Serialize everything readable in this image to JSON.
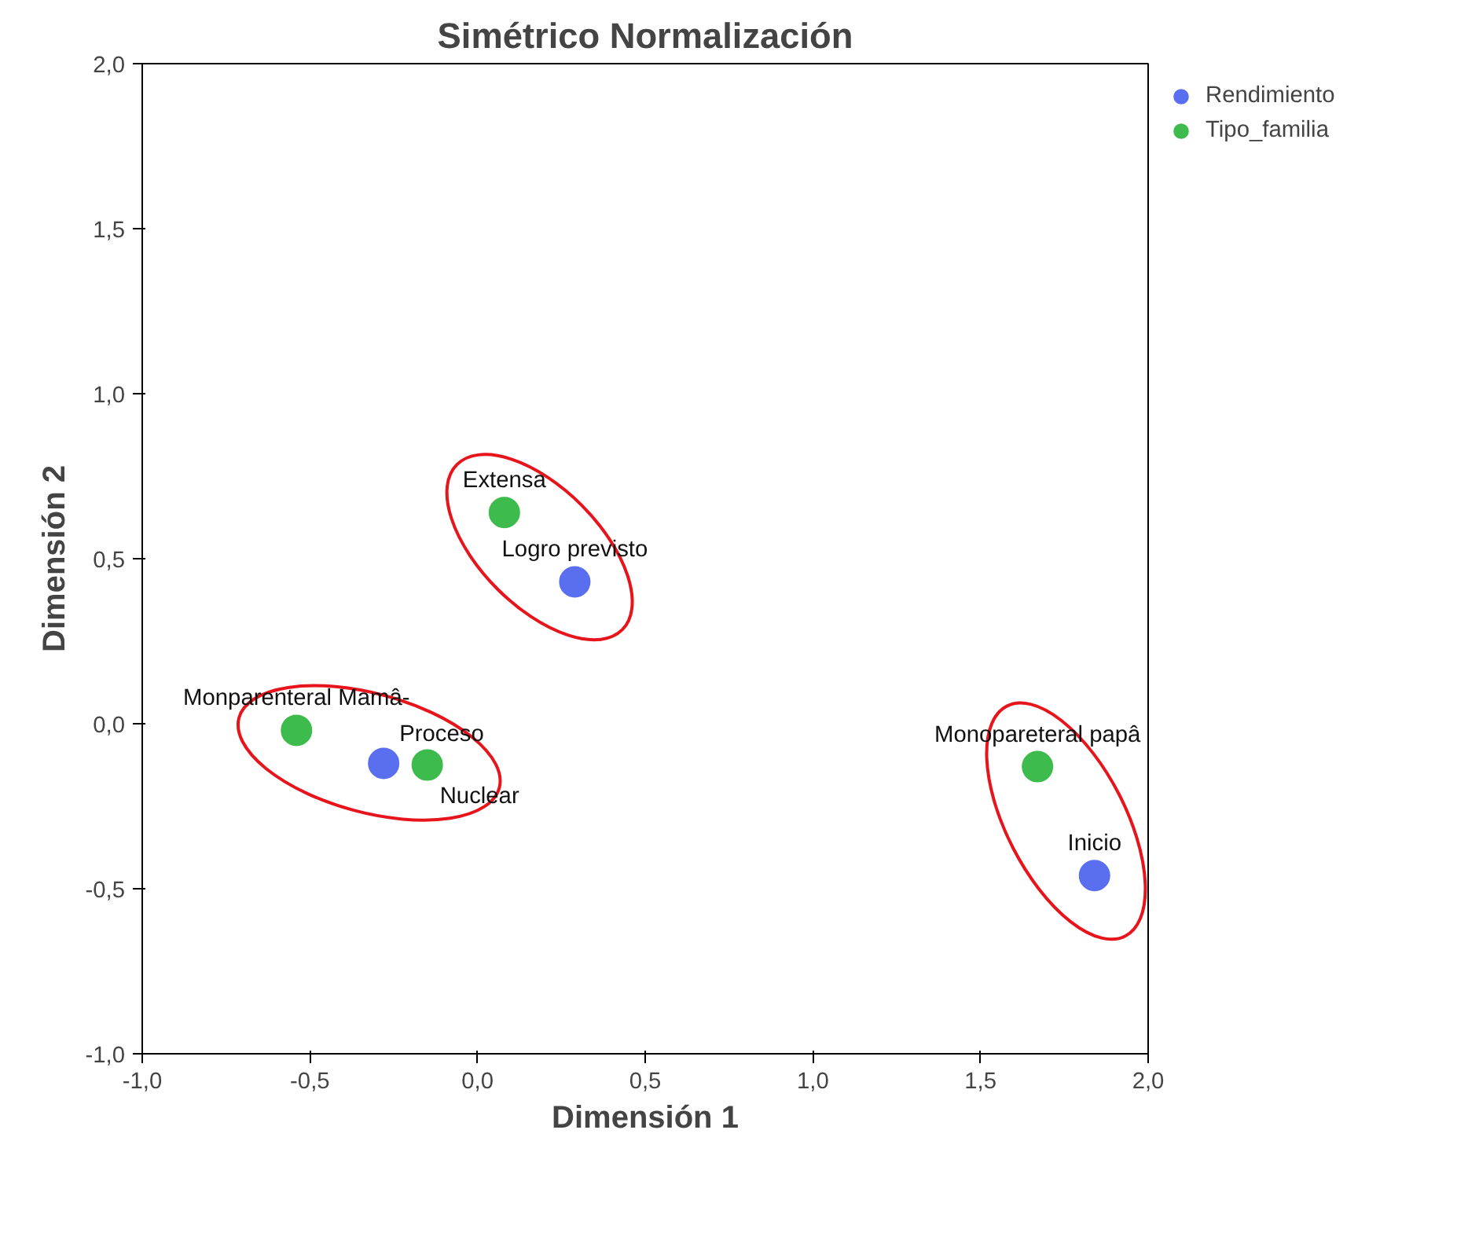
{
  "chart_data": {
    "type": "scatter",
    "title": "Simétrico Normalización",
    "xlabel": "Dimensión 1",
    "ylabel": "Dimensión 2",
    "series": [
      {
        "name": "Rendimiento",
        "color": "#5a6ef0",
        "x": [
          0.29,
          -0.28,
          1.84
        ],
        "values": [
          0.43,
          -0.12,
          -0.46
        ]
      },
      {
        "name": "Tipo_familia",
        "color": "#3dbb4c",
        "x": [
          0.08,
          -0.54,
          -0.15,
          1.67
        ],
        "values": [
          0.64,
          -0.02,
          -0.125,
          -0.13
        ]
      }
    ],
    "annotations": [
      {
        "text": "Logro previsto",
        "x": 0.29,
        "y": 0.43
      },
      {
        "text": "Proceso",
        "x": -0.28,
        "y": -0.12
      },
      {
        "text": "Inicio",
        "x": 1.84,
        "y": -0.46
      },
      {
        "text": "Extensa",
        "x": 0.08,
        "y": 0.64
      },
      {
        "text": "Monparenteral Mamâ-",
        "x": -0.54,
        "y": -0.02
      },
      {
        "text": "Nuclear",
        "x": -0.15,
        "y": -0.125
      },
      {
        "text": "Monopareteral papâ",
        "x": 1.67,
        "y": -0.13
      }
    ],
    "xlim": [
      -1,
      2
    ],
    "ylim": [
      -1,
      2
    ],
    "xticks": [
      {
        "value": -1,
        "label": "-1,0"
      },
      {
        "value": -0.5,
        "label": "-0,5"
      },
      {
        "value": 0,
        "label": "0,0"
      },
      {
        "value": 0.5,
        "label": "0,5"
      },
      {
        "value": 1,
        "label": "1,0"
      },
      {
        "value": 1.5,
        "label": "1,5"
      },
      {
        "value": 2,
        "label": "2,0"
      }
    ],
    "yticks": [
      {
        "value": -1,
        "label": "-1,0"
      },
      {
        "value": -0.5,
        "label": "-0,5"
      },
      {
        "value": 0,
        "label": "0,0"
      },
      {
        "value": 0.5,
        "label": "0,5"
      },
      {
        "value": 1,
        "label": "1,0"
      },
      {
        "value": 1.5,
        "label": "1,5"
      },
      {
        "value": 2,
        "label": "2,0"
      }
    ],
    "grid": false,
    "legend": "top right",
    "marker": "circle"
  }
}
